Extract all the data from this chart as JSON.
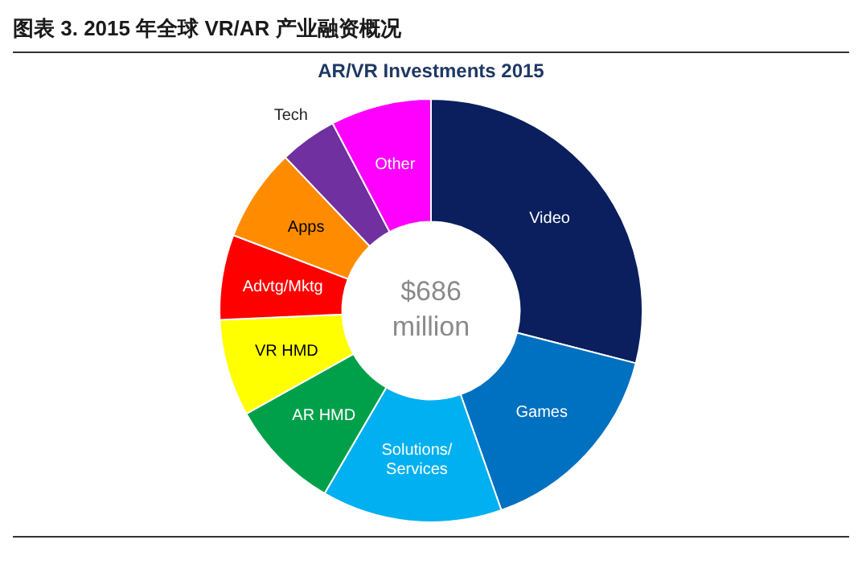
{
  "chart_data": {
    "type": "donut",
    "title": "图表 3. 2015 年全球 VR/AR 产业融资概况",
    "subtitle": "AR/VR Investments 2015",
    "categories": [
      "Video",
      "Games",
      "Solutions/\nServices",
      "AR HMD",
      "VR HMD",
      "Advtg/Mktg",
      "Apps",
      "Tech",
      "Other"
    ],
    "values": [
      29,
      15.6,
      13.8,
      8.5,
      7.4,
      6.5,
      7.1,
      4.4,
      7.7
    ],
    "colors": [
      "#0b1f5e",
      "#0070c0",
      "#00b0f0",
      "#00a04a",
      "#ffff00",
      "#ff0000",
      "#ff8c00",
      "#7030a0",
      "#ff00ff"
    ],
    "annotations": [
      "$686\nmillion"
    ],
    "legend": false
  }
}
